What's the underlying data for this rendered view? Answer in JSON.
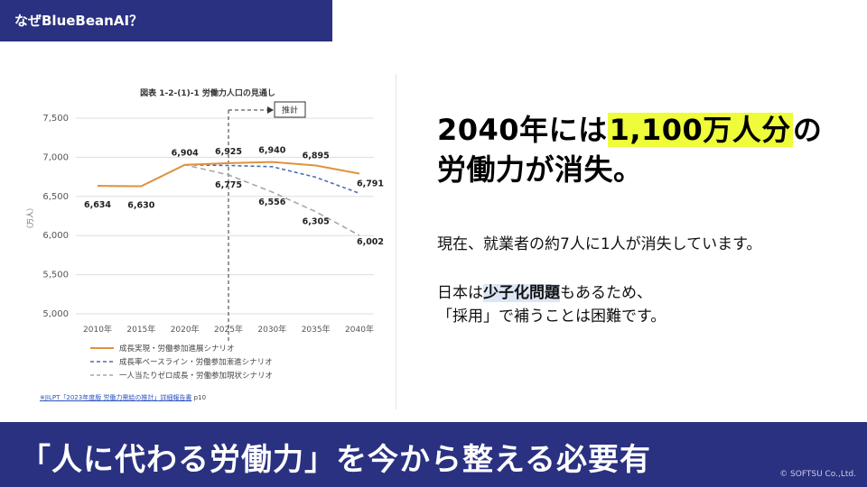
{
  "top_tab": {
    "title": "なぜBlueBeanAI？"
  },
  "chart_data": {
    "type": "line",
    "title": "図表 1-2-(1)-1 労働力人口の見通し",
    "ylabel": "（万人）",
    "xlabel": "",
    "categories": [
      "2010年",
      "2015年",
      "2020年",
      "2025年",
      "2030年",
      "2035年",
      "2040年"
    ],
    "ylim": [
      5000,
      7500
    ],
    "yticks": [
      "7,500",
      "7,000",
      "6,500",
      "6,000",
      "5,500",
      "5,000"
    ],
    "grid": true,
    "legend_position": "bottom",
    "annotation": "推計",
    "series": [
      {
        "name": "成長実現・労働参加進展シナリオ",
        "color": "#e0923d",
        "dash": "solid",
        "values": [
          6634,
          6630,
          6904,
          6925,
          6940,
          6895,
          6791
        ],
        "labels": [
          "6,634",
          "6,630",
          "6,904",
          "6,925",
          "6,940",
          "6,895",
          "6,791"
        ]
      },
      {
        "name": "成長率ベースライン・労働参加漸進シナリオ",
        "color": "#4a6db4",
        "dash": "dashed",
        "values": [
          6634,
          6630,
          6904,
          6895,
          6880,
          6745,
          6540
        ],
        "labels": [
          "",
          "",
          "",
          "",
          "",
          "",
          ""
        ]
      },
      {
        "name": "一人当たりゼロ成長・労働参加現状シナリオ",
        "color": "#a6a6a6",
        "dash": "dashed",
        "values": [
          6634,
          6630,
          6904,
          6775,
          6556,
          6305,
          6002
        ],
        "labels": [
          "",
          "",
          "",
          "6,775",
          "6,556",
          "6,305",
          "6,002"
        ]
      }
    ]
  },
  "source": {
    "link_text": "※JILPT「2023年度版 労働力需給の推計」詳細報告書",
    "page": "p10"
  },
  "headline": {
    "pre": "2040年には",
    "highlight": "1,100万人分",
    "post": "の",
    "line2": "労働力が消失。"
  },
  "body": {
    "line1": "現在、就業者の約7人に1人が消失しています。",
    "line2_pre": "日本は",
    "line2_highlight": "少子化問題",
    "line2_post": "もあるため、",
    "line3": "「採用」で補うことは困難です。"
  },
  "banner": {
    "text": "「人に代わる労働力」を今から整える必要有",
    "copyright": "© SOFTSU Co.,Ltd."
  }
}
